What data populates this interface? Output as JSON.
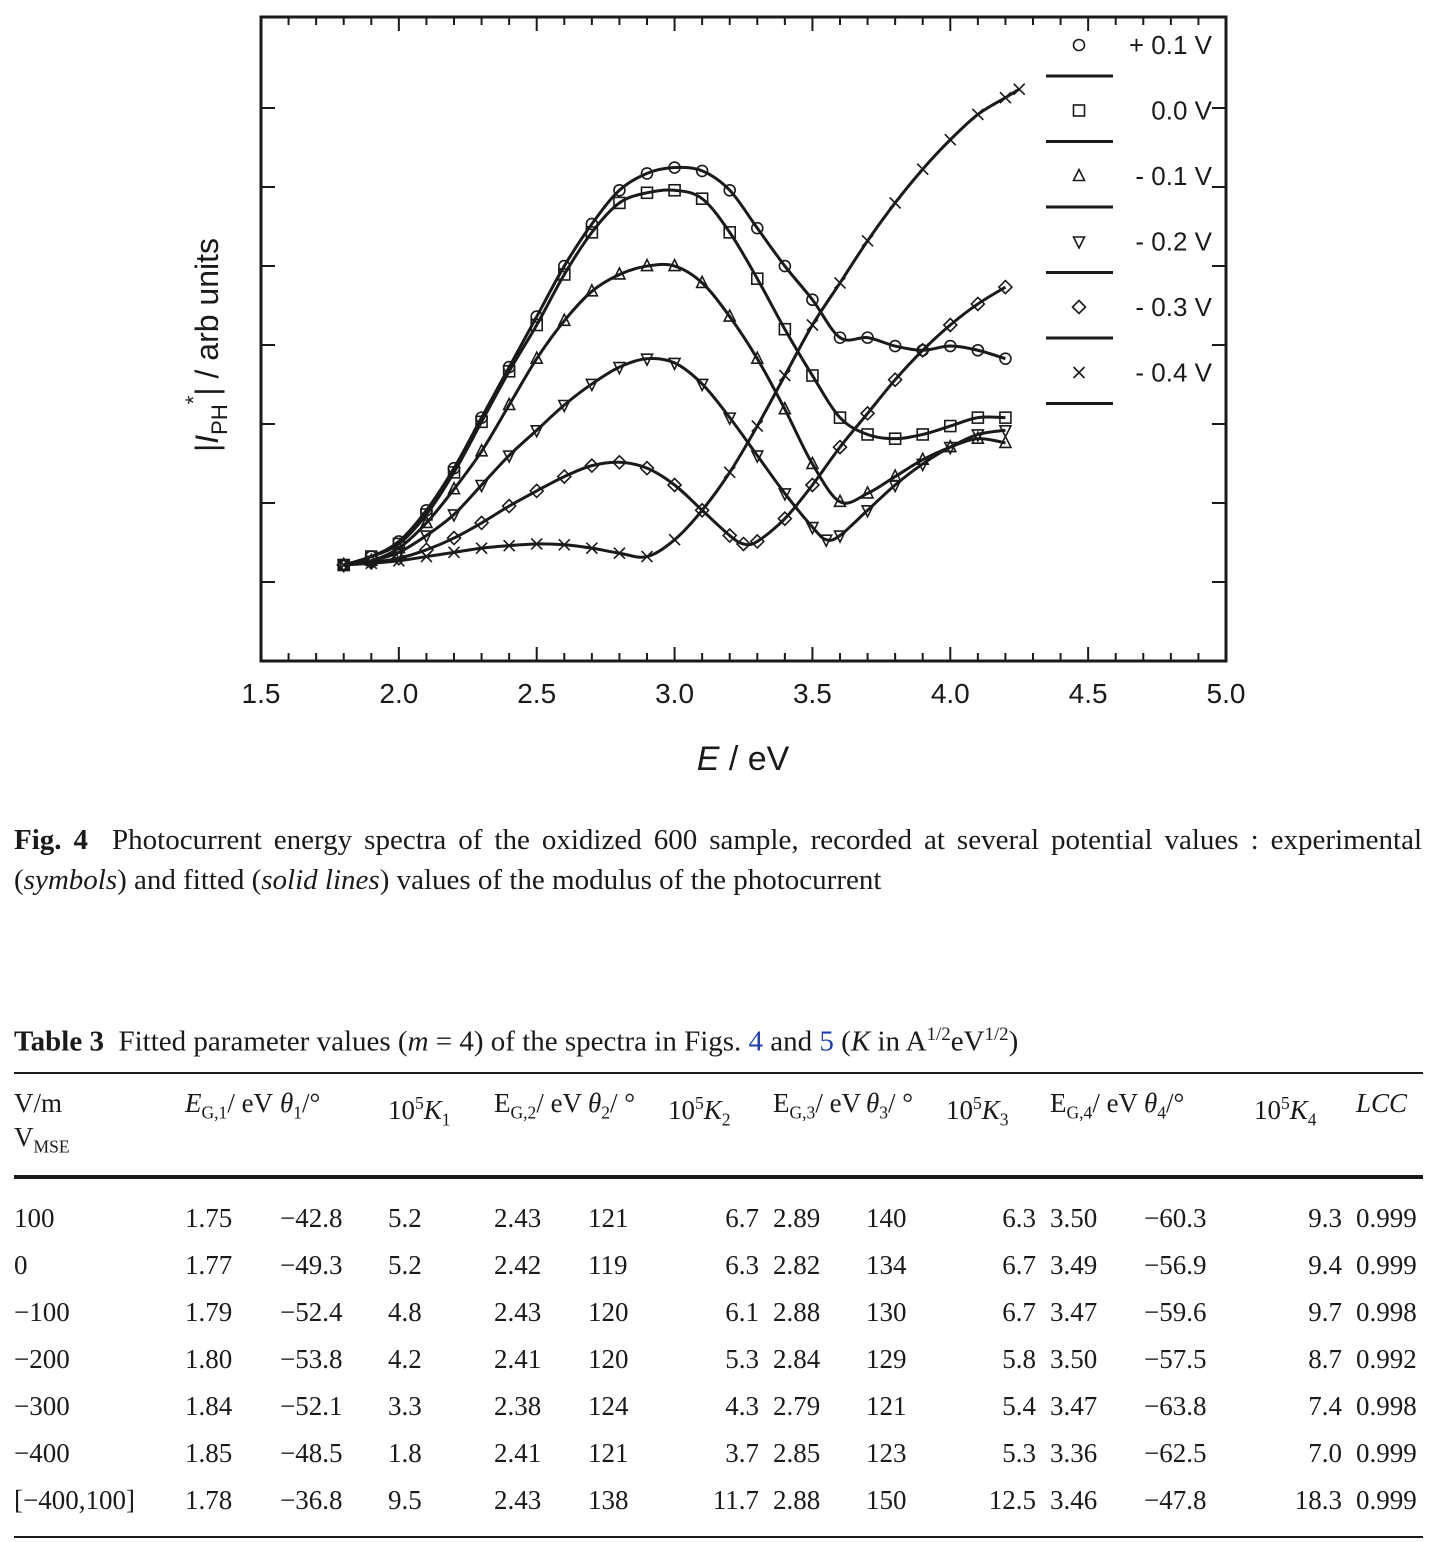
{
  "chart_data": {
    "type": "scatter",
    "xlabel_var": "E",
    "xlabel_unit": " / eV",
    "ylabel": "|I_PH*| / arb units",
    "xlim": [
      1.5,
      5.0
    ],
    "x_ticks": [
      "1.5",
      "2.0",
      "2.5",
      "3.0",
      "3.5",
      "4.0",
      "4.5",
      "5.0"
    ],
    "y_tick_count": 7,
    "grid": false,
    "legend_position": "top-right",
    "y_units": "arb units (0 = baseline of lowest data)",
    "series": [
      {
        "name": "+ 0.1 V",
        "marker": "circle",
        "points": [
          [
            1.8,
            0.0
          ],
          [
            1.9,
            0.1
          ],
          [
            2.0,
            0.28
          ],
          [
            2.1,
            0.65
          ],
          [
            2.2,
            1.15
          ],
          [
            2.3,
            1.75
          ],
          [
            2.4,
            2.35
          ],
          [
            2.5,
            2.95
          ],
          [
            2.6,
            3.55
          ],
          [
            2.7,
            4.05
          ],
          [
            2.8,
            4.45
          ],
          [
            2.9,
            4.65
          ],
          [
            3.0,
            4.72
          ],
          [
            3.1,
            4.68
          ],
          [
            3.2,
            4.45
          ],
          [
            3.3,
            4.0
          ],
          [
            3.4,
            3.55
          ],
          [
            3.5,
            3.15
          ],
          [
            3.6,
            2.7
          ],
          [
            3.7,
            2.7
          ],
          [
            3.8,
            2.6
          ],
          [
            3.9,
            2.55
          ],
          [
            4.0,
            2.6
          ],
          [
            4.1,
            2.55
          ],
          [
            4.2,
            2.45
          ]
        ]
      },
      {
        "name": "0.0 V",
        "marker": "square",
        "points": [
          [
            1.8,
            0.0
          ],
          [
            1.9,
            0.1
          ],
          [
            2.0,
            0.25
          ],
          [
            2.1,
            0.6
          ],
          [
            2.2,
            1.1
          ],
          [
            2.3,
            1.7
          ],
          [
            2.4,
            2.3
          ],
          [
            2.5,
            2.85
          ],
          [
            2.6,
            3.45
          ],
          [
            2.7,
            3.95
          ],
          [
            2.8,
            4.3
          ],
          [
            2.9,
            4.42
          ],
          [
            3.0,
            4.45
          ],
          [
            3.1,
            4.35
          ],
          [
            3.2,
            3.95
          ],
          [
            3.3,
            3.4
          ],
          [
            3.4,
            2.8
          ],
          [
            3.5,
            2.25
          ],
          [
            3.6,
            1.75
          ],
          [
            3.7,
            1.55
          ],
          [
            3.8,
            1.5
          ],
          [
            3.9,
            1.55
          ],
          [
            4.0,
            1.65
          ],
          [
            4.1,
            1.75
          ],
          [
            4.2,
            1.75
          ]
        ]
      },
      {
        "name": "- 0.1 V",
        "marker": "triangle-up",
        "points": [
          [
            1.8,
            0.0
          ],
          [
            1.9,
            0.05
          ],
          [
            2.0,
            0.2
          ],
          [
            2.1,
            0.5
          ],
          [
            2.2,
            0.9
          ],
          [
            2.3,
            1.35
          ],
          [
            2.4,
            1.9
          ],
          [
            2.5,
            2.45
          ],
          [
            2.6,
            2.9
          ],
          [
            2.7,
            3.25
          ],
          [
            2.8,
            3.45
          ],
          [
            2.9,
            3.55
          ],
          [
            3.0,
            3.55
          ],
          [
            3.1,
            3.35
          ],
          [
            3.2,
            2.95
          ],
          [
            3.3,
            2.45
          ],
          [
            3.4,
            1.85
          ],
          [
            3.5,
            1.2
          ],
          [
            3.6,
            0.75
          ],
          [
            3.7,
            0.85
          ],
          [
            3.8,
            1.05
          ],
          [
            3.9,
            1.25
          ],
          [
            4.0,
            1.4
          ],
          [
            4.1,
            1.5
          ],
          [
            4.2,
            1.45
          ]
        ]
      },
      {
        "name": "- 0.2 V",
        "marker": "triangle-down",
        "points": [
          [
            1.8,
            0.0
          ],
          [
            1.9,
            0.05
          ],
          [
            2.0,
            0.15
          ],
          [
            2.1,
            0.35
          ],
          [
            2.2,
            0.6
          ],
          [
            2.3,
            0.95
          ],
          [
            2.4,
            1.3
          ],
          [
            2.5,
            1.6
          ],
          [
            2.6,
            1.9
          ],
          [
            2.7,
            2.15
          ],
          [
            2.8,
            2.35
          ],
          [
            2.9,
            2.45
          ],
          [
            3.0,
            2.4
          ],
          [
            3.1,
            2.15
          ],
          [
            3.2,
            1.75
          ],
          [
            3.3,
            1.3
          ],
          [
            3.4,
            0.85
          ],
          [
            3.5,
            0.45
          ],
          [
            3.55,
            0.3
          ],
          [
            3.6,
            0.35
          ],
          [
            3.7,
            0.65
          ],
          [
            3.8,
            0.95
          ],
          [
            3.9,
            1.2
          ],
          [
            4.0,
            1.4
          ],
          [
            4.1,
            1.55
          ],
          [
            4.2,
            1.6
          ]
        ]
      },
      {
        "name": "- 0.3 V",
        "marker": "diamond",
        "points": [
          [
            1.8,
            0.0
          ],
          [
            1.9,
            0.03
          ],
          [
            2.0,
            0.08
          ],
          [
            2.1,
            0.18
          ],
          [
            2.2,
            0.32
          ],
          [
            2.3,
            0.5
          ],
          [
            2.4,
            0.7
          ],
          [
            2.5,
            0.88
          ],
          [
            2.6,
            1.05
          ],
          [
            2.7,
            1.18
          ],
          [
            2.8,
            1.22
          ],
          [
            2.9,
            1.15
          ],
          [
            3.0,
            0.95
          ],
          [
            3.1,
            0.65
          ],
          [
            3.2,
            0.35
          ],
          [
            3.25,
            0.25
          ],
          [
            3.3,
            0.28
          ],
          [
            3.4,
            0.55
          ],
          [
            3.5,
            0.95
          ],
          [
            3.6,
            1.4
          ],
          [
            3.7,
            1.8
          ],
          [
            3.8,
            2.2
          ],
          [
            3.9,
            2.55
          ],
          [
            4.0,
            2.85
          ],
          [
            4.1,
            3.1
          ],
          [
            4.2,
            3.3
          ]
        ]
      },
      {
        "name": "- 0.4 V",
        "marker": "x",
        "points": [
          [
            1.8,
            0.0
          ],
          [
            1.9,
            0.02
          ],
          [
            2.0,
            0.05
          ],
          [
            2.1,
            0.1
          ],
          [
            2.2,
            0.15
          ],
          [
            2.3,
            0.2
          ],
          [
            2.4,
            0.23
          ],
          [
            2.5,
            0.25
          ],
          [
            2.6,
            0.24
          ],
          [
            2.7,
            0.2
          ],
          [
            2.8,
            0.14
          ],
          [
            2.9,
            0.1
          ],
          [
            3.0,
            0.3
          ],
          [
            3.1,
            0.65
          ],
          [
            3.2,
            1.1
          ],
          [
            3.3,
            1.65
          ],
          [
            3.4,
            2.25
          ],
          [
            3.5,
            2.85
          ],
          [
            3.6,
            3.35
          ],
          [
            3.7,
            3.85
          ],
          [
            3.8,
            4.3
          ],
          [
            3.9,
            4.7
          ],
          [
            4.0,
            5.05
          ],
          [
            4.1,
            5.35
          ],
          [
            4.2,
            5.55
          ],
          [
            4.25,
            5.65
          ]
        ]
      }
    ]
  },
  "caption": {
    "label": "Fig. 4",
    "text": "Photocurrent energy spectra of the oxidized 600 sample, recorded at several potential values : experimental (",
    "em1": "symbols",
    "mid": ") and fitted (",
    "em2": "solid lines",
    "end": ") values of the modulus of the photocurrent"
  },
  "table": {
    "label": "Table 3",
    "title_a": "Fitted parameter values (",
    "title_m": "m",
    "title_b": " = 4) of the spectra in Figs. ",
    "ref1": "4",
    "title_and": " and ",
    "ref2": "5",
    "title_c": " (",
    "title_K": "K",
    "title_d": " in A",
    "title_sup1": "1/2",
    "title_e": "eV",
    "title_sup2": "1/2",
    "title_f": ")",
    "headers": {
      "c0_line1": "V/m",
      "c0_line2_base": "V",
      "c0_line2_sub": "MSE",
      "c1_var": "E",
      "c1_sub": "G,1",
      "c1_unit": "/ eV",
      "c2_var": "θ",
      "c2_sub": "1",
      "c2_unit": "/°",
      "c3_pre": "10",
      "c3_sup": "5",
      "c3_var": "K",
      "c3_sub": "1",
      "c4_var": "E",
      "c4_sub": "G,2",
      "c4_unit": "/ eV",
      "c5_var": "θ",
      "c5_sub": "2",
      "c5_unit": "/ °",
      "c6_pre": "10",
      "c6_sup": "5",
      "c6_var": "K",
      "c6_sub": "2",
      "c7_var": "E",
      "c7_sub": "G,3",
      "c7_unit": "/ eV",
      "c8_var": "θ",
      "c8_sub": "3",
      "c8_unit": "/ °",
      "c9_pre": "10",
      "c9_sup": "5",
      "c9_var": "K",
      "c9_sub": "3",
      "c10_var": "E",
      "c10_sub": "G,4",
      "c10_unit": "/ eV",
      "c11_var": "θ",
      "c11_sub": "4",
      "c11_unit": "/°",
      "c12_pre": "10",
      "c12_sup": "5",
      "c12_var": "K",
      "c12_sub": "4",
      "c13": "LCC"
    },
    "rows": [
      [
        "100",
        "1.75",
        "−42.8",
        "5.2",
        "2.43",
        "121",
        "6.7",
        "2.89",
        "140",
        "6.3",
        "3.50",
        "−60.3",
        "9.3",
        "0.999"
      ],
      [
        "0",
        "1.77",
        "−49.3",
        "5.2",
        "2.42",
        "119",
        "6.3",
        "2.82",
        "134",
        "6.7",
        "3.49",
        "−56.9",
        "9.4",
        "0.999"
      ],
      [
        "−100",
        "1.79",
        "−52.4",
        "4.8",
        "2.43",
        "120",
        "6.1",
        "2.88",
        "130",
        "6.7",
        "3.47",
        "−59.6",
        "9.7",
        "0.998"
      ],
      [
        "−200",
        "1.80",
        "−53.8",
        "4.2",
        "2.41",
        "120",
        "5.3",
        "2.84",
        "129",
        "5.8",
        "3.50",
        "−57.5",
        "8.7",
        "0.992"
      ],
      [
        "−300",
        "1.84",
        "−52.1",
        "3.3",
        "2.38",
        "124",
        "4.3",
        "2.79",
        "121",
        "5.4",
        "3.47",
        "−63.8",
        "7.4",
        "0.998"
      ],
      [
        "−400",
        "1.85",
        "−48.5",
        "1.8",
        "2.41",
        "121",
        "3.7",
        "2.85",
        "123",
        "5.3",
        "3.36",
        "−62.5",
        "7.0",
        "0.999"
      ],
      [
        "[−400,100]",
        "1.78",
        "−36.8",
        "9.5",
        "2.43",
        "138",
        "11.7",
        "2.88",
        "150",
        "12.5",
        "3.46",
        "−47.8",
        "18.3",
        "0.999"
      ]
    ]
  }
}
